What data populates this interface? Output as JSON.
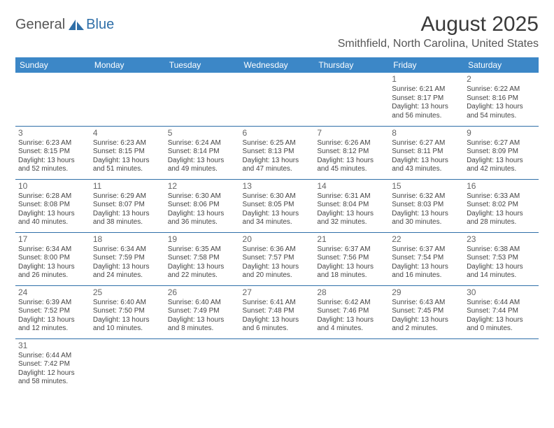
{
  "brand": {
    "t1": "General",
    "t2": "Blue"
  },
  "title": "August 2025",
  "location": "Smithfield, North Carolina, United States",
  "colors": {
    "header_bg": "#3c87c7",
    "rule": "#2f6fa8"
  },
  "weekdays": [
    "Sunday",
    "Monday",
    "Tuesday",
    "Wednesday",
    "Thursday",
    "Friday",
    "Saturday"
  ],
  "weeks": [
    [
      null,
      null,
      null,
      null,
      null,
      {
        "n": "1",
        "r": "Sunrise: 6:21 AM",
        "s": "Sunset: 8:17 PM",
        "d1": "Daylight: 13 hours",
        "d2": "and 56 minutes."
      },
      {
        "n": "2",
        "r": "Sunrise: 6:22 AM",
        "s": "Sunset: 8:16 PM",
        "d1": "Daylight: 13 hours",
        "d2": "and 54 minutes."
      }
    ],
    [
      {
        "n": "3",
        "r": "Sunrise: 6:23 AM",
        "s": "Sunset: 8:15 PM",
        "d1": "Daylight: 13 hours",
        "d2": "and 52 minutes."
      },
      {
        "n": "4",
        "r": "Sunrise: 6:23 AM",
        "s": "Sunset: 8:15 PM",
        "d1": "Daylight: 13 hours",
        "d2": "and 51 minutes."
      },
      {
        "n": "5",
        "r": "Sunrise: 6:24 AM",
        "s": "Sunset: 8:14 PM",
        "d1": "Daylight: 13 hours",
        "d2": "and 49 minutes."
      },
      {
        "n": "6",
        "r": "Sunrise: 6:25 AM",
        "s": "Sunset: 8:13 PM",
        "d1": "Daylight: 13 hours",
        "d2": "and 47 minutes."
      },
      {
        "n": "7",
        "r": "Sunrise: 6:26 AM",
        "s": "Sunset: 8:12 PM",
        "d1": "Daylight: 13 hours",
        "d2": "and 45 minutes."
      },
      {
        "n": "8",
        "r": "Sunrise: 6:27 AM",
        "s": "Sunset: 8:11 PM",
        "d1": "Daylight: 13 hours",
        "d2": "and 43 minutes."
      },
      {
        "n": "9",
        "r": "Sunrise: 6:27 AM",
        "s": "Sunset: 8:09 PM",
        "d1": "Daylight: 13 hours",
        "d2": "and 42 minutes."
      }
    ],
    [
      {
        "n": "10",
        "r": "Sunrise: 6:28 AM",
        "s": "Sunset: 8:08 PM",
        "d1": "Daylight: 13 hours",
        "d2": "and 40 minutes."
      },
      {
        "n": "11",
        "r": "Sunrise: 6:29 AM",
        "s": "Sunset: 8:07 PM",
        "d1": "Daylight: 13 hours",
        "d2": "and 38 minutes."
      },
      {
        "n": "12",
        "r": "Sunrise: 6:30 AM",
        "s": "Sunset: 8:06 PM",
        "d1": "Daylight: 13 hours",
        "d2": "and 36 minutes."
      },
      {
        "n": "13",
        "r": "Sunrise: 6:30 AM",
        "s": "Sunset: 8:05 PM",
        "d1": "Daylight: 13 hours",
        "d2": "and 34 minutes."
      },
      {
        "n": "14",
        "r": "Sunrise: 6:31 AM",
        "s": "Sunset: 8:04 PM",
        "d1": "Daylight: 13 hours",
        "d2": "and 32 minutes."
      },
      {
        "n": "15",
        "r": "Sunrise: 6:32 AM",
        "s": "Sunset: 8:03 PM",
        "d1": "Daylight: 13 hours",
        "d2": "and 30 minutes."
      },
      {
        "n": "16",
        "r": "Sunrise: 6:33 AM",
        "s": "Sunset: 8:02 PM",
        "d1": "Daylight: 13 hours",
        "d2": "and 28 minutes."
      }
    ],
    [
      {
        "n": "17",
        "r": "Sunrise: 6:34 AM",
        "s": "Sunset: 8:00 PM",
        "d1": "Daylight: 13 hours",
        "d2": "and 26 minutes."
      },
      {
        "n": "18",
        "r": "Sunrise: 6:34 AM",
        "s": "Sunset: 7:59 PM",
        "d1": "Daylight: 13 hours",
        "d2": "and 24 minutes."
      },
      {
        "n": "19",
        "r": "Sunrise: 6:35 AM",
        "s": "Sunset: 7:58 PM",
        "d1": "Daylight: 13 hours",
        "d2": "and 22 minutes."
      },
      {
        "n": "20",
        "r": "Sunrise: 6:36 AM",
        "s": "Sunset: 7:57 PM",
        "d1": "Daylight: 13 hours",
        "d2": "and 20 minutes."
      },
      {
        "n": "21",
        "r": "Sunrise: 6:37 AM",
        "s": "Sunset: 7:56 PM",
        "d1": "Daylight: 13 hours",
        "d2": "and 18 minutes."
      },
      {
        "n": "22",
        "r": "Sunrise: 6:37 AM",
        "s": "Sunset: 7:54 PM",
        "d1": "Daylight: 13 hours",
        "d2": "and 16 minutes."
      },
      {
        "n": "23",
        "r": "Sunrise: 6:38 AM",
        "s": "Sunset: 7:53 PM",
        "d1": "Daylight: 13 hours",
        "d2": "and 14 minutes."
      }
    ],
    [
      {
        "n": "24",
        "r": "Sunrise: 6:39 AM",
        "s": "Sunset: 7:52 PM",
        "d1": "Daylight: 13 hours",
        "d2": "and 12 minutes."
      },
      {
        "n": "25",
        "r": "Sunrise: 6:40 AM",
        "s": "Sunset: 7:50 PM",
        "d1": "Daylight: 13 hours",
        "d2": "and 10 minutes."
      },
      {
        "n": "26",
        "r": "Sunrise: 6:40 AM",
        "s": "Sunset: 7:49 PM",
        "d1": "Daylight: 13 hours",
        "d2": "and 8 minutes."
      },
      {
        "n": "27",
        "r": "Sunrise: 6:41 AM",
        "s": "Sunset: 7:48 PM",
        "d1": "Daylight: 13 hours",
        "d2": "and 6 minutes."
      },
      {
        "n": "28",
        "r": "Sunrise: 6:42 AM",
        "s": "Sunset: 7:46 PM",
        "d1": "Daylight: 13 hours",
        "d2": "and 4 minutes."
      },
      {
        "n": "29",
        "r": "Sunrise: 6:43 AM",
        "s": "Sunset: 7:45 PM",
        "d1": "Daylight: 13 hours",
        "d2": "and 2 minutes."
      },
      {
        "n": "30",
        "r": "Sunrise: 6:44 AM",
        "s": "Sunset: 7:44 PM",
        "d1": "Daylight: 13 hours",
        "d2": "and 0 minutes."
      }
    ],
    [
      {
        "n": "31",
        "r": "Sunrise: 6:44 AM",
        "s": "Sunset: 7:42 PM",
        "d1": "Daylight: 12 hours",
        "d2": "and 58 minutes."
      },
      null,
      null,
      null,
      null,
      null,
      null
    ]
  ]
}
